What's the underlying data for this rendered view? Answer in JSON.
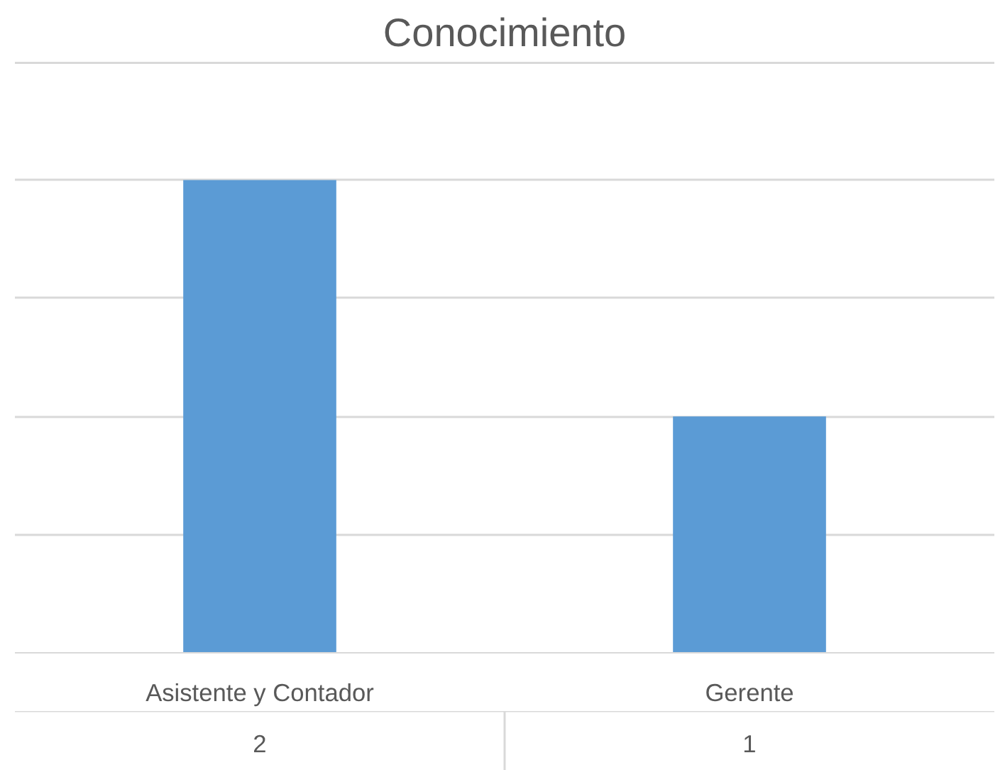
{
  "chart_data": {
    "type": "bar",
    "title": "Conocimiento",
    "categories": [
      "Asistente y Contador",
      "Gerente"
    ],
    "values": [
      2,
      1
    ],
    "color": "#5b9bd5",
    "ylim": [
      0,
      2.5
    ],
    "yticks": [
      {
        "value": 0,
        "label": null
      },
      {
        "value": 0.5,
        "label": null
      },
      {
        "value": 1,
        "label": null
      },
      {
        "value": 1.5,
        "label": null
      },
      {
        "value": 2,
        "label": null
      },
      {
        "value": 2.5,
        "label": null
      }
    ],
    "tick_labels": "x",
    "grid": "y",
    "data_labels": true
  }
}
